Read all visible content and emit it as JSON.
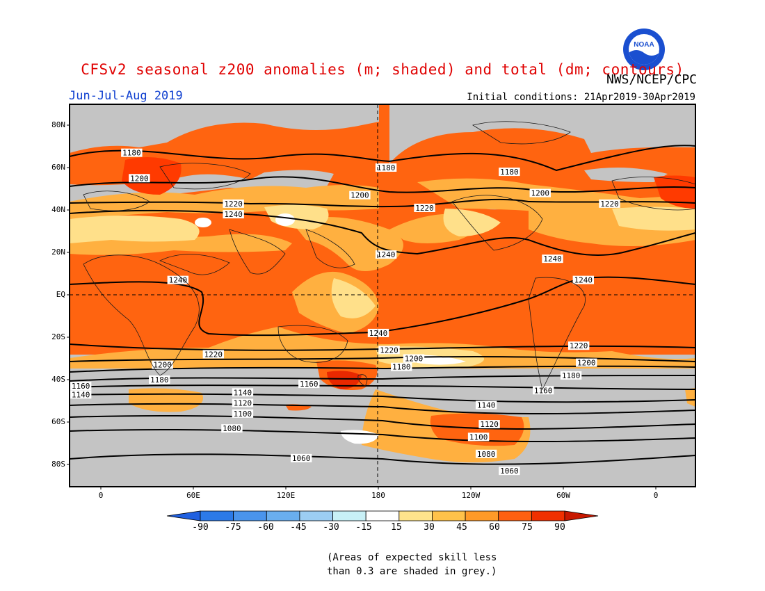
{
  "title": "CFSv2 seasonal z200 anomalies (m; shaded) and total (dm; contours)",
  "agency": "NWS/NCEP/CPC",
  "season": "Jun-Jul-Aug 2019",
  "initial_conditions": "Initial conditions: 21Apr2019-30Apr2019",
  "logo_text": "NOAA",
  "note": "(Areas of expected skill less\nthan 0.3 are shaded in grey.)",
  "lat_labels": [
    "80N",
    "60N",
    "40N",
    "20N",
    "EQ",
    "20S",
    "40S",
    "60S",
    "80S"
  ],
  "lon_labels": [
    "0",
    "60E",
    "120E",
    "180",
    "120W",
    "60W",
    "0"
  ],
  "colorbar": {
    "labels": [
      "-90",
      "-75",
      "-60",
      "-45",
      "-30",
      "-15",
      "15",
      "30",
      "45",
      "60",
      "75",
      "90"
    ],
    "colors": [
      "#2060e0",
      "#2c7ae8",
      "#4a94ec",
      "#6aaeee",
      "#9ccdf2",
      "#c8f0f6",
      "#ffffff",
      "#ffe48c",
      "#ffc24a",
      "#ff9a28",
      "#ff6010",
      "#f03000",
      "#c81800"
    ]
  },
  "colors": {
    "grey": "#c4c4c4",
    "orange": "#ff6410",
    "light_orange": "#ffb040",
    "yellow": "#ffe08a",
    "title_red": "#e00000",
    "season_blue": "#1040d0"
  },
  "contour_labels": [
    {
      "text": "1180",
      "lon": 20,
      "lat": 67
    },
    {
      "text": "1180",
      "lon": 185,
      "lat": 60
    },
    {
      "text": "1180",
      "lon": 265,
      "lat": 58
    },
    {
      "text": "1200",
      "lon": 25,
      "lat": 55
    },
    {
      "text": "1200",
      "lon": 168,
      "lat": 47
    },
    {
      "text": "1200",
      "lon": 285,
      "lat": 48
    },
    {
      "text": "1220",
      "lon": 86,
      "lat": 43
    },
    {
      "text": "1220",
      "lon": 210,
      "lat": 41
    },
    {
      "text": "1220",
      "lon": 330,
      "lat": 43
    },
    {
      "text": "1240",
      "lon": 86,
      "lat": 38
    },
    {
      "text": "1240",
      "lon": 185,
      "lat": 19
    },
    {
      "text": "1240",
      "lon": 293,
      "lat": 17
    },
    {
      "text": "1240",
      "lon": 50,
      "lat": 7
    },
    {
      "text": "1240",
      "lon": 313,
      "lat": 7
    },
    {
      "text": "1240",
      "lon": 180,
      "lat": -18
    },
    {
      "text": "1220",
      "lon": 73,
      "lat": -28
    },
    {
      "text": "1220",
      "lon": 187,
      "lat": -26
    },
    {
      "text": "1220",
      "lon": 310,
      "lat": -24
    },
    {
      "text": "1200",
      "lon": 40,
      "lat": -33
    },
    {
      "text": "1200",
      "lon": 203,
      "lat": -30
    },
    {
      "text": "1200",
      "lon": 315,
      "lat": -32
    },
    {
      "text": "1180",
      "lon": 38,
      "lat": -40
    },
    {
      "text": "1180",
      "lon": 195,
      "lat": -34
    },
    {
      "text": "1180",
      "lon": 305,
      "lat": -38
    },
    {
      "text": "1160",
      "lon": 135,
      "lat": -42
    },
    {
      "text": "1160",
      "lon": 287,
      "lat": -45
    },
    {
      "text": "1160",
      "lon": -13,
      "lat": -43
    },
    {
      "text": "1140",
      "lon": -13,
      "lat": -47
    },
    {
      "text": "1140",
      "lon": 92,
      "lat": -46
    },
    {
      "text": "1140",
      "lon": 250,
      "lat": -52
    },
    {
      "text": "1120",
      "lon": 92,
      "lat": -51
    },
    {
      "text": "1120",
      "lon": 252,
      "lat": -61
    },
    {
      "text": "1100",
      "lon": 92,
      "lat": -56
    },
    {
      "text": "1100",
      "lon": 245,
      "lat": -67
    },
    {
      "text": "1080",
      "lon": 85,
      "lat": -63
    },
    {
      "text": "1080",
      "lon": 250,
      "lat": -75
    },
    {
      "text": "1060",
      "lon": 130,
      "lat": -77
    },
    {
      "text": "1060",
      "lon": 265,
      "lat": -83
    }
  ]
}
